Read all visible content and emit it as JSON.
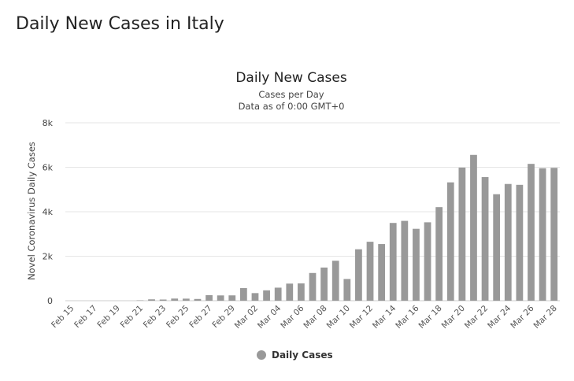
{
  "page": {
    "title": "Daily New Cases in Italy"
  },
  "chart_data": {
    "type": "bar",
    "title": "Daily New Cases",
    "subtitle": [
      "Cases per Day",
      "Data as of 0:00 GMT+0"
    ],
    "ylabel": "Novel Coronavirus Daily Cases",
    "xlabel": "",
    "ylim": [
      0,
      8000
    ],
    "yticks": [
      {
        "value": 0,
        "label": "0"
      },
      {
        "value": 2000,
        "label": "2k"
      },
      {
        "value": 4000,
        "label": "4k"
      },
      {
        "value": 6000,
        "label": "6k"
      },
      {
        "value": 8000,
        "label": "8k"
      }
    ],
    "grid": true,
    "legend_position": "bottom-center",
    "color": "#999999",
    "categories": [
      "Feb 15",
      "Feb 16",
      "Feb 17",
      "Feb 18",
      "Feb 19",
      "Feb 20",
      "Feb 21",
      "Feb 22",
      "Feb 23",
      "Feb 24",
      "Feb 25",
      "Feb 26",
      "Feb 27",
      "Feb 28",
      "Feb 29",
      "Mar 01",
      "Mar 02",
      "Mar 03",
      "Mar 04",
      "Mar 05",
      "Mar 06",
      "Mar 07",
      "Mar 08",
      "Mar 09",
      "Mar 10",
      "Mar 11",
      "Mar 12",
      "Mar 13",
      "Mar 14",
      "Mar 15",
      "Mar 16",
      "Mar 17",
      "Mar 18",
      "Mar 19",
      "Mar 20",
      "Mar 21",
      "Mar 22",
      "Mar 23",
      "Mar 24",
      "Mar 25",
      "Mar 26",
      "Mar 27",
      "Mar 28"
    ],
    "tick_labels": [
      "Feb 15",
      "Feb 17",
      "Feb 19",
      "Feb 21",
      "Feb 23",
      "Feb 25",
      "Feb 27",
      "Feb 29",
      "Mar 02",
      "Mar 04",
      "Mar 06",
      "Mar 08",
      "Mar 10",
      "Mar 12",
      "Mar 14",
      "Mar 16",
      "Mar 18",
      "Mar 20",
      "Mar 22",
      "Mar 24",
      "Mar 26",
      "Mar 28"
    ],
    "series": [
      {
        "name": "Daily Cases",
        "values": [
          0,
          0,
          0,
          0,
          0,
          0,
          17,
          62,
          53,
          97,
          93,
          78,
          250,
          238,
          240,
          566,
          342,
          466,
          587,
          769,
          778,
          1247,
          1492,
          1797,
          977,
          2313,
          2651,
          2547,
          3497,
          3590,
          3233,
          3526,
          4207,
          5322,
          5986,
          6557,
          5560,
          4789,
          5249,
          5210,
          6153,
          5959,
          5974
        ]
      }
    ]
  }
}
